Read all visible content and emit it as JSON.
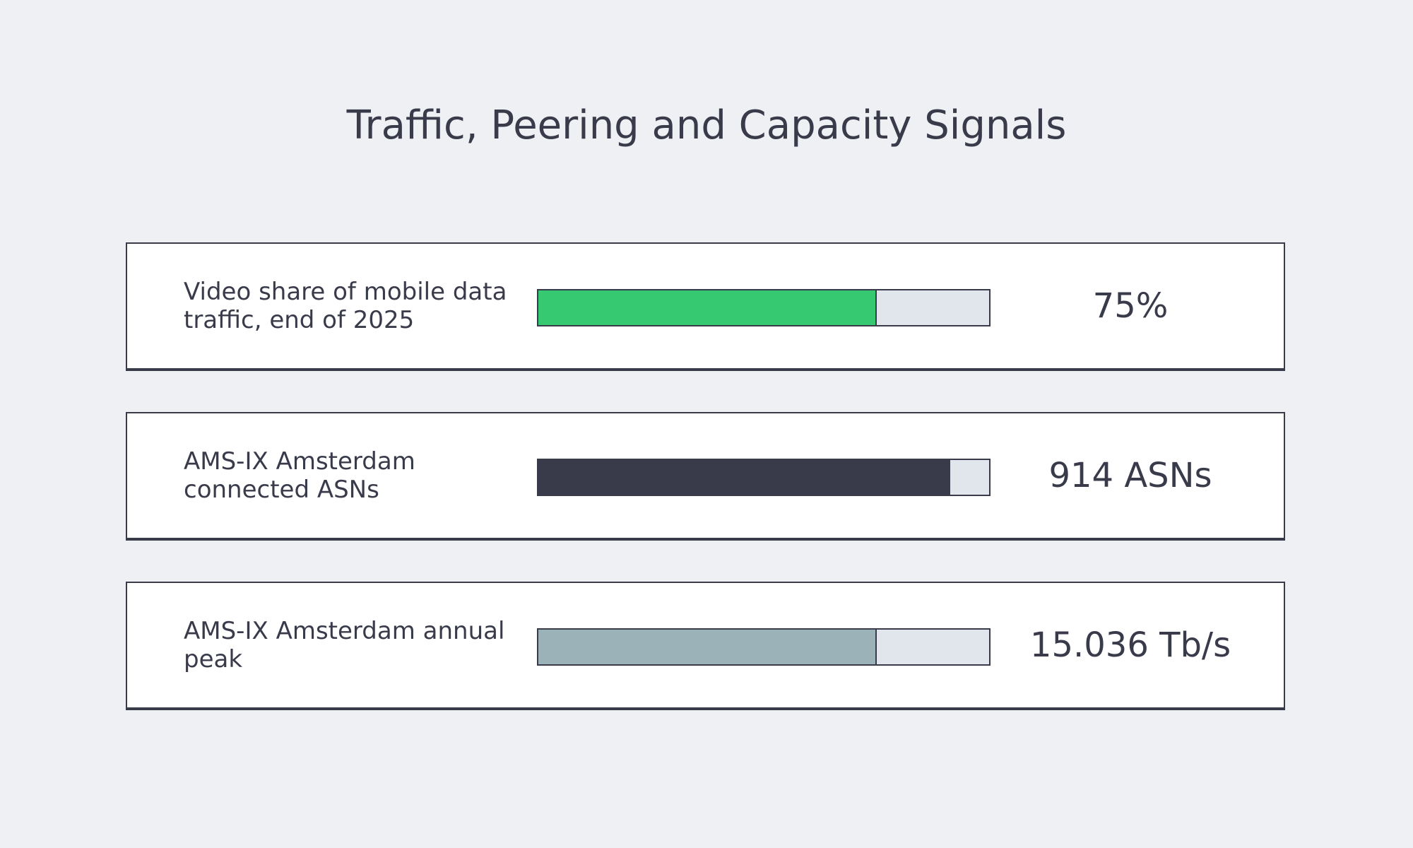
{
  "title": "Traffic, Peering and Capacity Signals",
  "chart_data": {
    "type": "bar",
    "title": "Traffic, Peering and Capacity Signals",
    "orientation": "horizontal",
    "categories": [
      "Video share of mobile data traffic, end of 2025",
      "AMS-IX Amsterdam connected ASNs",
      "AMS-IX Amsterdam annual peak"
    ],
    "value_labels": [
      "75%",
      "914 ASNs",
      "15.036 Tb/s"
    ],
    "fill_fractions": [
      0.75,
      0.914,
      0.75
    ],
    "colors": [
      "#37c872",
      "#393b4b",
      "#9ab2b8"
    ],
    "track_color": "#e1e5ec"
  }
}
